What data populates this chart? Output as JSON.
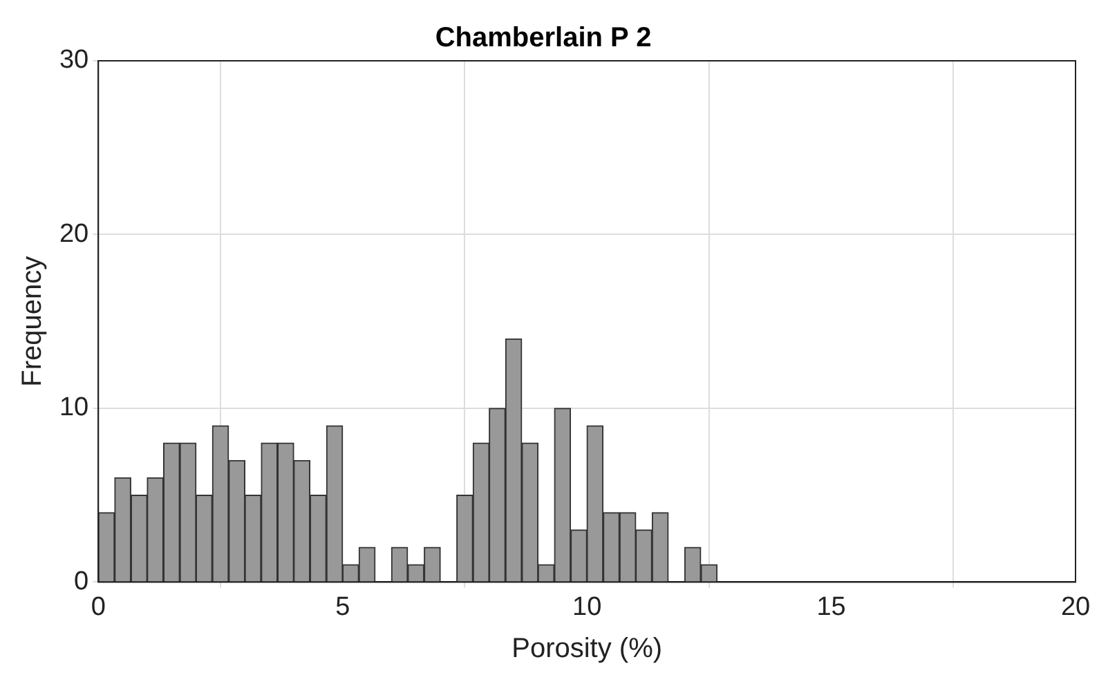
{
  "chart_data": {
    "type": "histogram",
    "title": "Chamberlain P 2",
    "xlabel": "Porosity (%)",
    "ylabel": "Frequency",
    "bins": [
      0,
      0.33,
      0.67,
      1,
      1.33,
      1.67,
      2,
      2.33,
      2.67,
      3,
      3.33,
      3.67,
      4,
      4.33,
      4.67,
      5,
      5.33,
      5.67,
      6,
      6.33,
      6.67,
      7,
      7.33,
      7.67,
      8,
      8.33,
      8.67,
      9,
      9.33,
      9.67,
      10,
      10.33,
      10.67,
      11,
      11.33,
      11.67,
      12,
      12.33,
      12.67
    ],
    "values": [
      4,
      6,
      5,
      6,
      8,
      8,
      5,
      9,
      7,
      5,
      8,
      8,
      7,
      5,
      9,
      1,
      2,
      0,
      2,
      1,
      2,
      0,
      5,
      8,
      10,
      14,
      8,
      1,
      10,
      3,
      9,
      4,
      4,
      3,
      4,
      0,
      2,
      1
    ],
    "color": "#999999",
    "xlim": [
      0,
      20
    ],
    "xticks": [
      0,
      5,
      10,
      15,
      20
    ],
    "ylim": [
      0,
      30
    ],
    "yticks": [
      0,
      10,
      20,
      30
    ],
    "grid": true,
    "legend": false
  }
}
